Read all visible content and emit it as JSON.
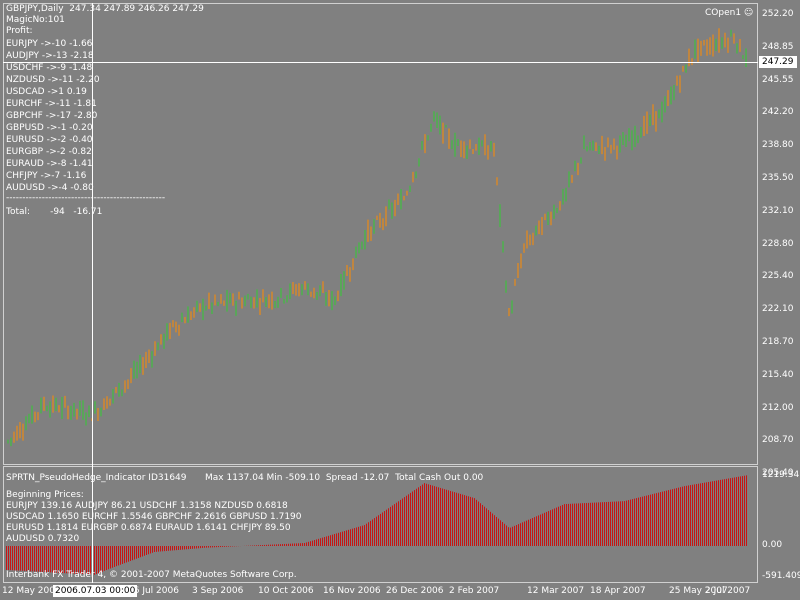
{
  "main": {
    "header": "GBPJPY,Daily  247.34 247.89 246.26 247.29",
    "magic": "MagicNo:101",
    "profit_label": "Profit:",
    "pairs": [
      "EURJPY ->-10 -1.66",
      "AUDJPY ->-13 -2.18",
      "USDCHF ->-9 -1.48",
      "NZDUSD ->-11 -2.20",
      "USDCAD ->1 0.19",
      "EURCHF ->-11 -1.81",
      "GBPCHF ->-17 -2.80",
      "GBPUSD ->-1 -0.20",
      "EURUSD ->-2 -0.40",
      "EURGBP ->-2 -0.82",
      "EURAUD ->-8 -1.41",
      "CHFJPY ->-7 -1.16",
      "AUDUSD ->-4 -0.80"
    ],
    "separator": "-------------------------------------------------",
    "total": "Total:       -94   -16.71",
    "expert": "COpen1 ☺",
    "current_price": "247.29",
    "price_ticks": [
      "252.20",
      "248.85",
      "245.55",
      "242.20",
      "238.80",
      "235.50",
      "232.10",
      "228.80",
      "225.40",
      "222.10",
      "218.70",
      "215.40",
      "212.00",
      "208.70",
      "205.40"
    ]
  },
  "indicator": {
    "title": "SPRTN_PseudoHedge_Indicator ID31649",
    "stats": "Max 1137.04 Min -509.10  Spread -12.07  Total Cash Out 0.00",
    "beginning_label": "Beginning Prices:",
    "lines": [
      "EURJPY 139.16 AUDJPY 86.21 USDCHF 1.3158 NZDUSD 0.6818",
      "USDCAD 1.1650 EURCHF 1.5546 GBPCHF 2.2616 GBPUSD 1.7190",
      "EURUSD 1.1814 EURGBP 0.6874 EURAUD 1.6141 CHFJPY 89.50",
      "AUDUSD 0.7320"
    ],
    "axis": [
      "1219.34",
      "0.00",
      "-591.409"
    ],
    "copyright": "Interbank FX Trader 4, © 2001-2007 MetaQuotes Software Corp."
  },
  "time_axis": {
    "labels": [
      "12 May 200",
      "26 Jul 2006",
      "3 Sep 2006",
      "10 Oct 2006",
      "16 Nov 2006",
      "26 Dec 2006",
      "2 Feb 2007",
      "12 Mar 2007",
      "18 Apr 2007",
      "25 May 2007",
      "2 Jul 2007"
    ],
    "crosshair_time": "2006.07.03 00:00"
  },
  "colors": {
    "bull": "#32cd32",
    "bear": "#ff8c00",
    "histogram": "#c81414",
    "background": "#808080"
  }
}
